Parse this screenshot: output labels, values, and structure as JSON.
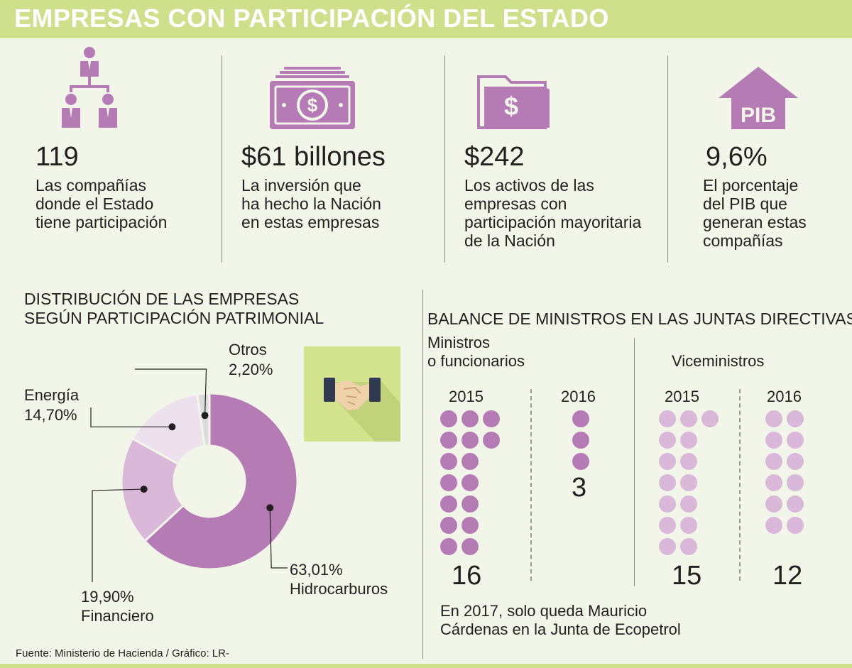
{
  "header": {
    "title": "EMPRESAS CON PARTICIPACIÓN DEL ESTADO"
  },
  "stats": [
    {
      "value": "119",
      "description": "Las compañías\ndonde el Estado\ntiene participación",
      "icon": "org-chart-icon"
    },
    {
      "value": "$61 billones",
      "description": "La inversión que\nha hecho la Nación\nen estas empresas",
      "icon": "banknote-icon"
    },
    {
      "value": "$242",
      "description": "Los activos de las\nempresas con\nparticipación mayoritaria\nde la Nación",
      "icon": "money-folder-icon"
    },
    {
      "value": "9,6%",
      "description": "El porcentaje\ndel PIB que\ngeneran estas\ncompañías",
      "icon": "pib-arrow-icon",
      "icon_label": "PIB"
    }
  ],
  "colors": {
    "banner": "#cfe08c",
    "purple": "#b47bb5",
    "light_purple": "#d9b8d9",
    "pale_purple": "#ede1ee",
    "grey": "#dcdcdc",
    "handshake_bg": "#d4e38e"
  },
  "chart_data": [
    {
      "type": "pie",
      "title": "DISTRIBUCIÓN DE LAS EMPRESAS\nSEGÚN PARTICIPACIÓN PATRIMONIAL",
      "slices": [
        {
          "name": "Hidrocarburos",
          "value": 63.01,
          "label": "63,01%",
          "color": "#b47bb5"
        },
        {
          "name": "Financiero",
          "value": 19.9,
          "label": "19,90%",
          "color": "#d9b8d9"
        },
        {
          "name": "Energía",
          "value": 14.7,
          "label": "14,70%",
          "color": "#ede1ee"
        },
        {
          "name": "Otros",
          "value": 2.2,
          "label": "2,20%",
          "color": "#dcdcdc"
        }
      ]
    },
    {
      "type": "table",
      "title": "BALANCE DE MINISTROS EN LAS JUNTAS DIRECTIVAS",
      "groups": [
        {
          "name": "Ministros\no funcionarios",
          "color": "#b47bb5",
          "years": [
            {
              "year": "2015",
              "count": 16
            },
            {
              "year": "2016",
              "count": 3
            }
          ]
        },
        {
          "name": "Viceministros",
          "color": "#d9b8d9",
          "years": [
            {
              "year": "2015",
              "count": 15
            },
            {
              "year": "2016",
              "count": 12
            }
          ]
        }
      ]
    }
  ],
  "handshake": {
    "icon": "handshake-icon"
  },
  "note": "En 2017, solo queda Mauricio\nCárdenas en la Junta de Ecopetrol",
  "source": "Fuente: Ministerio de Hacienda / Gráfico: LR-"
}
